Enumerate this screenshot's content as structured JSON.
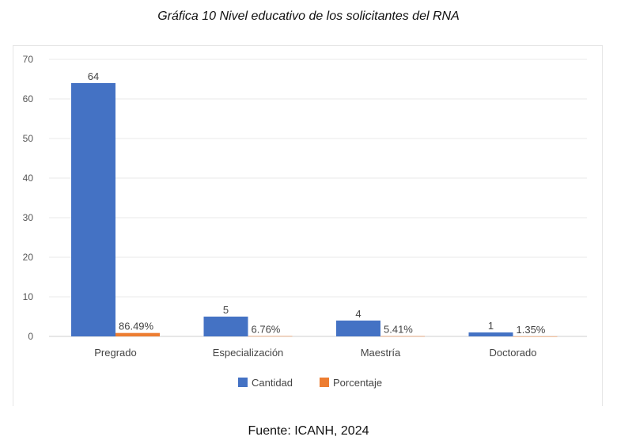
{
  "caption": "Gráfica 10 Nivel educativo de los solicitantes del RNA",
  "source": "Fuente: ICANH, 2024",
  "chart_data": {
    "type": "bar",
    "categories": [
      "Pregrado",
      "Especialización",
      "Maestría",
      "Doctorado"
    ],
    "series": [
      {
        "name": "Cantidad",
        "values": [
          64,
          5,
          4,
          1
        ],
        "labels": [
          "64",
          "5",
          "4",
          "1"
        ],
        "color": "#4472c4"
      },
      {
        "name": "Porcentaje",
        "values": [
          0.8649,
          0.0676,
          0.0541,
          0.0135
        ],
        "labels": [
          "86.49%",
          "6.76%",
          "5.41%",
          "1.35%"
        ],
        "color": "#ed7d31"
      }
    ],
    "yticks": [
      "0",
      "10",
      "20",
      "30",
      "40",
      "50",
      "60",
      "70"
    ],
    "ylim": [
      0,
      70
    ],
    "grid": true,
    "legend": "bottom"
  }
}
